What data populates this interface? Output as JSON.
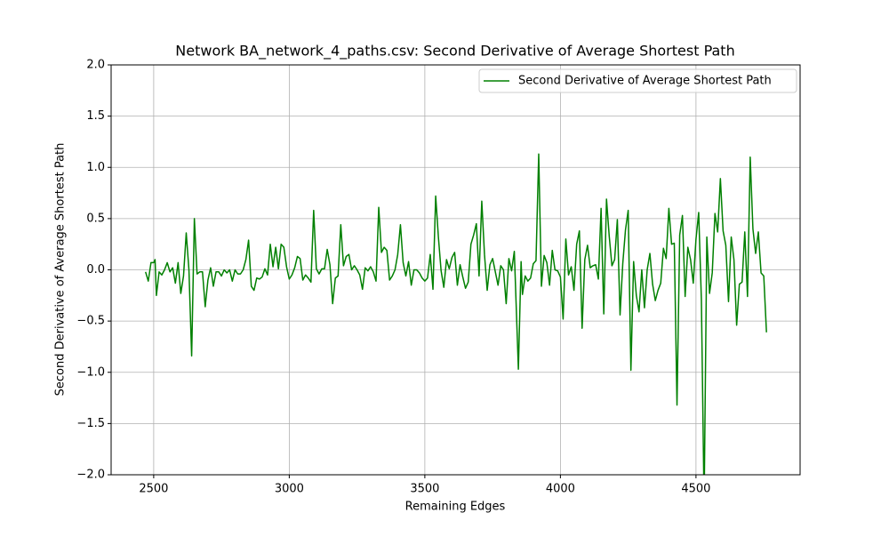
{
  "chart_data": {
    "type": "line",
    "title": "Network BA_network_4_paths.csv: Second Derivative of Average Shortest Path",
    "x_label": "Remaining Edges",
    "y_label": "Second Derivative of Average Shortest Path",
    "x": [
      2470,
      2480,
      2490,
      2500,
      2505,
      2510,
      2520,
      2530,
      2540,
      2550,
      2560,
      2570,
      2580,
      2590,
      2600,
      2610,
      2620,
      2630,
      2640,
      2650,
      2660,
      2670,
      2680,
      2690,
      2700,
      2710,
      2720,
      2730,
      2740,
      2750,
      2760,
      2770,
      2780,
      2790,
      2800,
      2810,
      2820,
      2830,
      2840,
      2850,
      2860,
      2870,
      2880,
      2890,
      2900,
      2910,
      2920,
      2930,
      2940,
      2950,
      2960,
      2970,
      2980,
      2990,
      3000,
      3010,
      3020,
      3030,
      3040,
      3050,
      3060,
      3070,
      3080,
      3090,
      3100,
      3110,
      3120,
      3130,
      3140,
      3150,
      3160,
      3170,
      3180,
      3190,
      3200,
      3210,
      3220,
      3230,
      3240,
      3250,
      3260,
      3270,
      3280,
      3290,
      3300,
      3310,
      3320,
      3330,
      3340,
      3350,
      3360,
      3370,
      3380,
      3390,
      3400,
      3410,
      3420,
      3430,
      3440,
      3450,
      3460,
      3470,
      3480,
      3490,
      3500,
      3510,
      3520,
      3530,
      3540,
      3550,
      3560,
      3570,
      3580,
      3590,
      3600,
      3610,
      3620,
      3630,
      3640,
      3650,
      3660,
      3670,
      3680,
      3690,
      3700,
      3710,
      3720,
      3730,
      3740,
      3750,
      3760,
      3770,
      3780,
      3790,
      3800,
      3810,
      3820,
      3830,
      3845,
      3855,
      3860,
      3870,
      3880,
      3890,
      3900,
      3910,
      3920,
      3930,
      3940,
      3950,
      3960,
      3970,
      3980,
      3990,
      4000,
      4010,
      4020,
      4030,
      4040,
      4050,
      4060,
      4070,
      4080,
      4090,
      4100,
      4110,
      4120,
      4130,
      4140,
      4150,
      4160,
      4170,
      4180,
      4190,
      4200,
      4210,
      4220,
      4230,
      4240,
      4250,
      4260,
      4270,
      4280,
      4290,
      4300,
      4310,
      4320,
      4330,
      4340,
      4350,
      4360,
      4370,
      4380,
      4390,
      4400,
      4410,
      4420,
      4430,
      4440,
      4450,
      4460,
      4470,
      4480,
      4490,
      4500,
      4510,
      4520,
      4530,
      4540,
      4550,
      4560,
      4570,
      4580,
      4590,
      4600,
      4610,
      4620,
      4630,
      4640,
      4650,
      4660,
      4670,
      4680,
      4690,
      4700,
      4710,
      4720,
      4730,
      4740,
      4750,
      4760
    ],
    "series": [
      {
        "name": "Second Derivative of Average Shortest Path",
        "color": "#008000",
        "values": [
          -0.02,
          -0.11,
          0.07,
          0.07,
          0.1,
          -0.25,
          -0.02,
          -0.05,
          0.0,
          0.07,
          -0.02,
          0.02,
          -0.13,
          0.07,
          -0.23,
          -0.06,
          0.36,
          0.0,
          -0.84,
          0.5,
          -0.04,
          -0.02,
          -0.02,
          -0.36,
          -0.1,
          0.02,
          -0.16,
          -0.02,
          -0.02,
          -0.06,
          0.0,
          -0.03,
          0.0,
          -0.11,
          0.0,
          -0.04,
          -0.04,
          0.0,
          0.1,
          0.29,
          -0.16,
          -0.2,
          -0.08,
          -0.09,
          -0.07,
          0.01,
          -0.05,
          0.25,
          0.03,
          0.22,
          0.01,
          0.25,
          0.22,
          0.03,
          -0.09,
          -0.05,
          0.02,
          0.13,
          0.11,
          -0.1,
          -0.05,
          -0.08,
          -0.12,
          0.58,
          0.01,
          -0.04,
          0.01,
          0.01,
          0.2,
          0.05,
          -0.33,
          -0.08,
          -0.06,
          0.44,
          0.04,
          0.13,
          0.15,
          0.0,
          0.04,
          0.0,
          -0.05,
          -0.19,
          0.02,
          -0.01,
          0.03,
          -0.02,
          -0.11,
          0.61,
          0.17,
          0.22,
          0.19,
          -0.1,
          -0.06,
          0.0,
          0.15,
          0.44,
          0.07,
          -0.06,
          0.08,
          -0.15,
          0.0,
          0.0,
          -0.03,
          -0.08,
          -0.11,
          -0.08,
          0.15,
          -0.19,
          0.72,
          0.32,
          -0.01,
          -0.17,
          0.1,
          0.01,
          0.12,
          0.17,
          -0.15,
          0.05,
          -0.07,
          -0.18,
          -0.12,
          0.25,
          0.34,
          0.45,
          -0.06,
          0.67,
          0.15,
          -0.2,
          0.05,
          0.11,
          -0.02,
          -0.15,
          0.04,
          0.0,
          -0.33,
          0.11,
          -0.01,
          0.18,
          -0.97,
          0.08,
          -0.24,
          -0.06,
          -0.11,
          -0.08,
          0.06,
          0.09,
          1.13,
          -0.16,
          0.14,
          0.07,
          -0.15,
          0.19,
          0.0,
          -0.01,
          -0.07,
          -0.48,
          0.3,
          -0.05,
          0.03,
          -0.2,
          0.25,
          0.38,
          -0.57,
          0.1,
          0.24,
          0.02,
          0.04,
          0.05,
          -0.09,
          0.6,
          -0.43,
          0.69,
          0.33,
          0.04,
          0.1,
          0.49,
          -0.44,
          0.06,
          0.39,
          0.58,
          -0.98,
          0.08,
          -0.25,
          -0.41,
          0.0,
          -0.37,
          0.0,
          0.16,
          -0.14,
          -0.3,
          -0.2,
          -0.13,
          0.21,
          0.11,
          0.6,
          0.25,
          0.26,
          -1.32,
          0.34,
          0.53,
          -0.26,
          0.22,
          0.1,
          -0.13,
          0.3,
          0.56,
          -0.3,
          -2.3,
          0.32,
          -0.23,
          -0.03,
          0.55,
          0.37,
          0.89,
          0.38,
          0.24,
          -0.31,
          0.32,
          0.1,
          -0.54,
          -0.14,
          -0.12,
          0.37,
          -0.26,
          1.1,
          0.4,
          0.16,
          0.37,
          -0.03,
          -0.06,
          -0.61
        ]
      }
    ],
    "xlim": [
      2343,
      4884
    ],
    "ylim": [
      -2.0,
      2.0
    ],
    "xticks": [
      2500,
      3000,
      3500,
      4000,
      4500
    ],
    "yticks": [
      {
        "value": -2.0,
        "label": "−2.0"
      },
      {
        "value": -1.5,
        "label": "−1.5"
      },
      {
        "value": -1.0,
        "label": "−1.0"
      },
      {
        "value": -0.5,
        "label": "−0.5"
      },
      {
        "value": 0.0,
        "label": "0.0"
      },
      {
        "value": 0.5,
        "label": "0.5"
      },
      {
        "value": 1.0,
        "label": "1.0"
      },
      {
        "value": 1.5,
        "label": "1.5"
      },
      {
        "value": 2.0,
        "label": "2.0"
      }
    ],
    "grid": true,
    "legend": "upper right"
  }
}
